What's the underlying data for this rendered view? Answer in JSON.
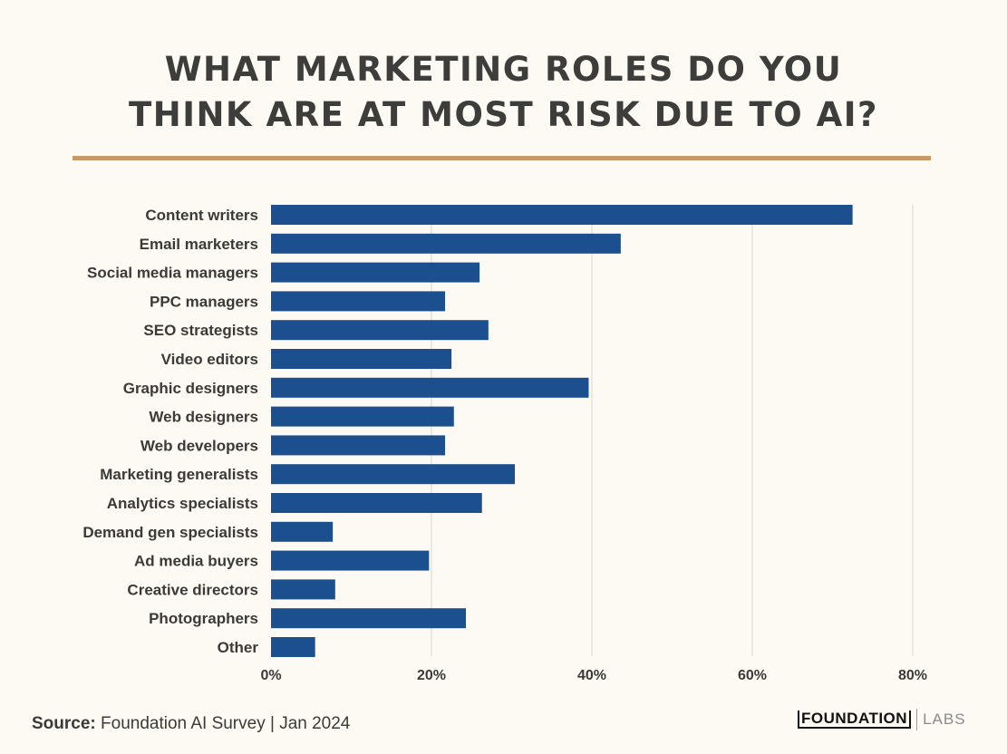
{
  "title_lines": [
    "WHAT MARKETING ROLES DO YOU",
    "THINK ARE AT MOST RISK DUE TO AI?"
  ],
  "source": {
    "label": "Source:",
    "text": "Foundation AI Survey | Jan 2024"
  },
  "logo": {
    "main": "FOUNDATION",
    "sub": "LABS"
  },
  "colors": {
    "bar": "#1c4f8e",
    "rule": "#c99a68",
    "grid": "#d6d6d2",
    "background": "#fdfaf4"
  },
  "chart_data": {
    "type": "bar",
    "orientation": "horizontal",
    "title": "WHAT MARKETING ROLES DO YOU THINK ARE AT MOST RISK DUE TO AI?",
    "categories": [
      "Content writers",
      "Email marketers",
      "Social media managers",
      "PPC managers",
      "SEO strategists",
      "Video editors",
      "Graphic designers",
      "Web designers",
      "Web developers",
      "Marketing generalists",
      "Analytics specialists",
      "Demand gen specialists",
      "Ad media buyers",
      "Creative directors",
      "Photographers",
      "Other"
    ],
    "values": [
      72.5,
      43.6,
      26.0,
      21.7,
      27.1,
      22.5,
      39.6,
      22.8,
      21.7,
      30.4,
      26.3,
      7.7,
      19.7,
      8.0,
      24.3,
      5.5
    ],
    "xlim": [
      0,
      80
    ],
    "xticks": [
      0,
      20,
      40,
      60,
      80
    ],
    "xtick_labels": [
      "0%",
      "20%",
      "40%",
      "60%",
      "80%"
    ],
    "grid": true,
    "xlabel": "",
    "ylabel": ""
  }
}
